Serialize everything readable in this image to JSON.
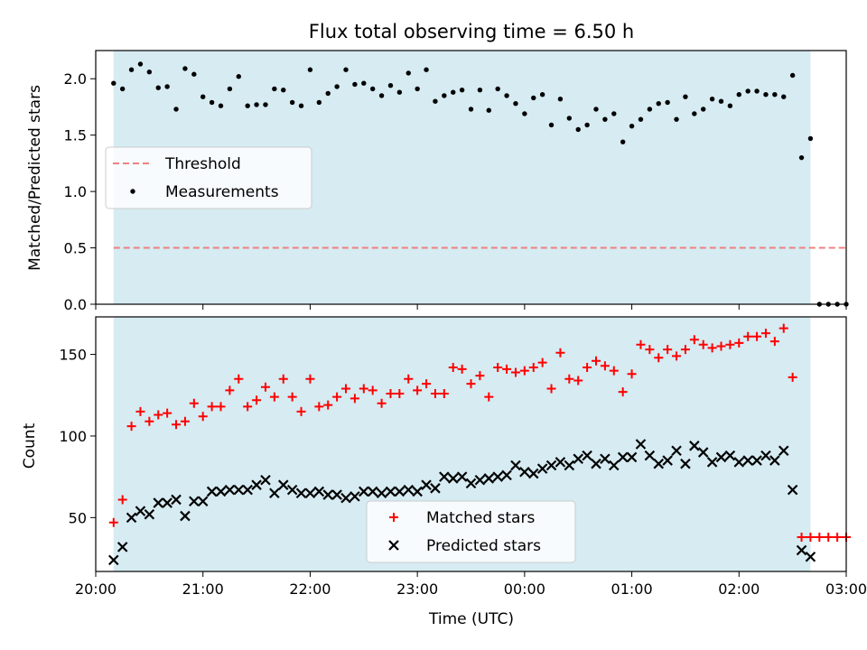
{
  "chart_data": [
    {
      "type": "scatter",
      "title": "Flux total observing time = 6.50 h",
      "xlabel": "",
      "ylabel": "Matched/Predicted stars",
      "xlim": [
        "20:00",
        "03:00"
      ],
      "ylim": [
        0,
        2.25
      ],
      "yticks": [
        "0.0",
        "0.5",
        "1.0",
        "1.5",
        "2.0"
      ],
      "grid": false,
      "legend_position": "center-left",
      "shaded_span": [
        "20:10",
        "26:40"
      ],
      "threshold": {
        "name": "Threshold",
        "value": 0.5,
        "x_start": "20:10",
        "x_end": "27:00",
        "color": "#f08080"
      },
      "series": [
        {
          "name": "Measurements",
          "color": "#000000",
          "x": [
            "20:10",
            "20:15",
            "20:20",
            "20:25",
            "20:30",
            "20:35",
            "20:40",
            "20:45",
            "20:50",
            "20:55",
            "21:00",
            "21:05",
            "21:10",
            "21:15",
            "21:20",
            "21:25",
            "21:30",
            "21:35",
            "21:40",
            "21:45",
            "21:50",
            "21:55",
            "22:00",
            "22:05",
            "22:10",
            "22:15",
            "22:20",
            "22:25",
            "22:30",
            "22:35",
            "22:40",
            "22:45",
            "22:50",
            "22:55",
            "23:00",
            "23:05",
            "23:10",
            "23:15",
            "23:20",
            "23:25",
            "23:30",
            "23:35",
            "23:40",
            "23:45",
            "23:50",
            "23:55",
            "24:00",
            "24:05",
            "24:10",
            "24:15",
            "24:20",
            "24:25",
            "24:30",
            "24:35",
            "24:40",
            "24:45",
            "24:50",
            "24:55",
            "25:00",
            "25:05",
            "25:10",
            "25:15",
            "25:20",
            "25:25",
            "25:30",
            "25:35",
            "25:40",
            "25:45",
            "25:50",
            "25:55",
            "26:00",
            "26:05",
            "26:10",
            "26:15",
            "26:20",
            "26:25",
            "26:30",
            "26:35",
            "26:40",
            "26:45",
            "26:50",
            "26:55",
            "27:00"
          ],
          "y": [
            1.96,
            1.91,
            2.08,
            2.13,
            2.06,
            1.92,
            1.93,
            1.73,
            2.09,
            2.04,
            1.84,
            1.79,
            1.76,
            1.91,
            2.02,
            1.76,
            1.77,
            1.77,
            1.91,
            1.9,
            1.79,
            1.76,
            2.08,
            1.79,
            1.87,
            1.93,
            2.08,
            1.95,
            1.96,
            1.91,
            1.85,
            1.94,
            1.88,
            2.05,
            1.91,
            2.08,
            1.8,
            1.85,
            1.88,
            1.9,
            1.73,
            1.9,
            1.72,
            1.91,
            1.85,
            1.78,
            1.69,
            1.83,
            1.86,
            1.59,
            1.82,
            1.65,
            1.55,
            1.59,
            1.73,
            1.64,
            1.69,
            1.44,
            1.58,
            1.64,
            1.73,
            1.78,
            1.79,
            1.64,
            1.84,
            1.69,
            1.73,
            1.82,
            1.8,
            1.76,
            1.86,
            1.89,
            1.89,
            1.86,
            1.86,
            1.84,
            2.03,
            1.3,
            1.47,
            0.0,
            0.0,
            0.0,
            0.0
          ]
        }
      ]
    },
    {
      "type": "scatter",
      "title": "",
      "xlabel": "Time (UTC)",
      "ylabel": "Count",
      "xlim": [
        "20:00",
        "03:00"
      ],
      "xticks": [
        "20:00",
        "21:00",
        "22:00",
        "23:00",
        "00:00",
        "01:00",
        "02:00",
        "03:00"
      ],
      "ylim": [
        17,
        173
      ],
      "yticks": [
        "50",
        "100",
        "150"
      ],
      "grid": false,
      "legend_position": "bottom-center",
      "shaded_span": [
        "20:10",
        "26:40"
      ],
      "series": [
        {
          "name": "Matched stars",
          "color": "#ff0000",
          "marker": "plus",
          "x": [
            "20:10",
            "20:15",
            "20:20",
            "20:25",
            "20:30",
            "20:35",
            "20:40",
            "20:45",
            "20:50",
            "20:55",
            "21:00",
            "21:05",
            "21:10",
            "21:15",
            "21:20",
            "21:25",
            "21:30",
            "21:35",
            "21:40",
            "21:45",
            "21:50",
            "21:55",
            "22:00",
            "22:05",
            "22:10",
            "22:15",
            "22:20",
            "22:25",
            "22:30",
            "22:35",
            "22:40",
            "22:45",
            "22:50",
            "22:55",
            "23:00",
            "23:05",
            "23:10",
            "23:15",
            "23:20",
            "23:25",
            "23:30",
            "23:35",
            "23:40",
            "23:45",
            "23:50",
            "23:55",
            "24:00",
            "24:05",
            "24:10",
            "24:15",
            "24:20",
            "24:25",
            "24:30",
            "24:35",
            "24:40",
            "24:45",
            "24:50",
            "24:55",
            "25:00",
            "25:05",
            "25:10",
            "25:15",
            "25:20",
            "25:25",
            "25:30",
            "25:35",
            "25:40",
            "25:45",
            "25:50",
            "25:55",
            "26:00",
            "26:05",
            "26:10",
            "26:15",
            "26:20",
            "26:25",
            "26:30",
            "26:35",
            "26:40",
            "26:45",
            "26:50",
            "26:55",
            "27:00"
          ],
          "y": [
            47,
            61,
            106,
            115,
            109,
            113,
            114,
            107,
            109,
            120,
            112,
            118,
            118,
            128,
            135,
            118,
            122,
            130,
            124,
            135,
            124,
            115,
            135,
            118,
            119,
            124,
            129,
            123,
            129,
            128,
            120,
            126,
            126,
            135,
            128,
            132,
            126,
            126,
            142,
            141,
            132,
            137,
            124,
            142,
            141,
            139,
            140,
            142,
            145,
            129,
            151,
            135,
            134,
            142,
            146,
            143,
            140,
            127,
            138,
            156,
            153,
            148,
            153,
            149,
            153,
            159,
            156,
            154,
            155,
            156,
            157,
            161,
            161,
            163,
            158,
            166,
            136,
            38,
            38,
            38,
            38,
            38,
            38
          ]
        },
        {
          "name": "Predicted stars",
          "color": "#000000",
          "marker": "x",
          "x": [
            "20:10",
            "20:15",
            "20:20",
            "20:25",
            "20:30",
            "20:35",
            "20:40",
            "20:45",
            "20:50",
            "20:55",
            "21:00",
            "21:05",
            "21:10",
            "21:15",
            "21:20",
            "21:25",
            "21:30",
            "21:35",
            "21:40",
            "21:45",
            "21:50",
            "21:55",
            "22:00",
            "22:05",
            "22:10",
            "22:15",
            "22:20",
            "22:25",
            "22:30",
            "22:35",
            "22:40",
            "22:45",
            "22:50",
            "22:55",
            "23:00",
            "23:05",
            "23:10",
            "23:15",
            "23:20",
            "23:25",
            "23:30",
            "23:35",
            "23:40",
            "23:45",
            "23:50",
            "23:55",
            "24:00",
            "24:05",
            "24:10",
            "24:15",
            "24:20",
            "24:25",
            "24:30",
            "24:35",
            "24:40",
            "24:45",
            "24:50",
            "24:55",
            "25:00",
            "25:05",
            "25:10",
            "25:15",
            "25:20",
            "25:25",
            "25:30",
            "25:35",
            "25:40",
            "25:45",
            "25:50",
            "25:55",
            "26:00",
            "26:05",
            "26:10",
            "26:15",
            "26:20",
            "26:25",
            "26:30",
            "26:35",
            "26:40"
          ],
          "y": [
            24,
            32,
            50,
            54,
            52,
            59,
            59,
            61,
            51,
            60,
            60,
            66,
            66,
            67,
            67,
            67,
            70,
            73,
            65,
            70,
            67,
            65,
            65,
            66,
            64,
            64,
            62,
            63,
            66,
            66,
            65,
            66,
            66,
            67,
            66,
            70,
            68,
            75,
            74,
            75,
            71,
            73,
            74,
            75,
            76,
            82,
            78,
            77,
            80,
            82,
            84,
            82,
            86,
            88,
            83,
            86,
            82,
            87,
            87,
            95,
            88,
            83,
            85,
            91,
            83,
            94,
            90,
            84,
            87,
            88,
            84,
            85,
            85,
            88,
            85,
            91,
            67,
            30,
            26
          ]
        }
      ]
    }
  ]
}
